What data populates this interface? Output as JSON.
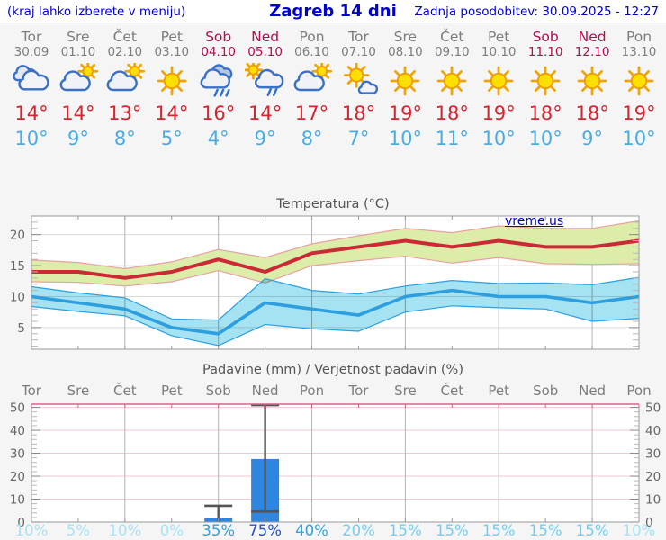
{
  "header": {
    "note": "(kraj lahko izberete v meniju)",
    "title": "Zagreb 14 dni",
    "updated": "Zadnja posodobitev: 30.09.2025 - 12:27"
  },
  "colors": {
    "link_blue": "#0000cd",
    "weekday_gray": "#7d7d7d",
    "weekend_red": "#b50c4f",
    "temp_max_text": "#d6232f",
    "temp_min_text": "#49ade4",
    "chart_red": "#cc2936",
    "chart_red_band": "#dcedaa",
    "chart_red_band_edge": "#e8a0a0",
    "chart_blue": "#2d9ede",
    "chart_blue_band": "#a5e2f2",
    "bar_blue": "#2e86e0",
    "whisker_gray": "#555555",
    "grid_gray": "#b3b3b3",
    "grid_light": "#dadada",
    "grid_pink": "#eec9d4",
    "border_pink": "#e0608a",
    "prob_low": "#a7e2f4",
    "prob_mid": "#74cdee",
    "prob_high": "#2ea3df",
    "prob_max": "#1e4fd6"
  },
  "days": [
    {
      "name": "Tor",
      "date": "30.09",
      "weekend": false,
      "icon": "cloudy",
      "tmax": "14°",
      "tmin": "10°",
      "prob": "10%"
    },
    {
      "name": "Sre",
      "date": "01.10",
      "weekend": false,
      "icon": "partly-sunny",
      "tmax": "14°",
      "tmin": "9°",
      "prob": "5%"
    },
    {
      "name": "Čet",
      "date": "02.10",
      "weekend": false,
      "icon": "partly-sunny",
      "tmax": "13°",
      "tmin": "8°",
      "prob": "10%"
    },
    {
      "name": "Pet",
      "date": "03.10",
      "weekend": false,
      "icon": "sunny",
      "tmax": "14°",
      "tmin": "5°",
      "prob": "0%"
    },
    {
      "name": "Sob",
      "date": "04.10",
      "weekend": true,
      "icon": "rain",
      "tmax": "16°",
      "tmin": "4°",
      "prob": "35%"
    },
    {
      "name": "Ned",
      "date": "05.10",
      "weekend": true,
      "icon": "sun-rain",
      "tmax": "14°",
      "tmin": "9°",
      "prob": "75%"
    },
    {
      "name": "Pon",
      "date": "06.10",
      "weekend": false,
      "icon": "partly-sunny",
      "tmax": "17°",
      "tmin": "8°",
      "prob": "40%"
    },
    {
      "name": "Tor",
      "date": "07.10",
      "weekend": false,
      "icon": "mostly-sunny",
      "tmax": "18°",
      "tmin": "7°",
      "prob": "20%"
    },
    {
      "name": "Sre",
      "date": "08.10",
      "weekend": false,
      "icon": "sunny",
      "tmax": "19°",
      "tmin": "10°",
      "prob": "15%"
    },
    {
      "name": "Čet",
      "date": "09.10",
      "weekend": false,
      "icon": "sunny",
      "tmax": "18°",
      "tmin": "11°",
      "prob": "15%"
    },
    {
      "name": "Pet",
      "date": "10.10",
      "weekend": false,
      "icon": "sunny",
      "tmax": "19°",
      "tmin": "10°",
      "prob": "15%"
    },
    {
      "name": "Sob",
      "date": "11.10",
      "weekend": true,
      "icon": "sunny",
      "tmax": "18°",
      "tmin": "10°",
      "prob": "15%"
    },
    {
      "name": "Ned",
      "date": "12.10",
      "weekend": true,
      "icon": "sunny",
      "tmax": "18°",
      "tmin": "9°",
      "prob": "15%"
    },
    {
      "name": "Pon",
      "date": "13.10",
      "weekend": false,
      "icon": "sunny",
      "tmax": "19°",
      "tmin": "10°",
      "prob": "10%"
    }
  ],
  "chart_data": [
    {
      "type": "line",
      "title": "Temperatura (°C)",
      "watermark": "vreme.us",
      "x_labels": [
        "Tor",
        "Sre",
        "Čet",
        "Pet",
        "Sob",
        "Ned",
        "Pon",
        "Tor",
        "Sre",
        "Čet",
        "Pet",
        "Sob",
        "Ned",
        "Pon"
      ],
      "ylim": [
        1.5,
        23
      ],
      "yticks": [
        5,
        10,
        15,
        20
      ],
      "grid": true,
      "series": [
        {
          "name": "max-temperature",
          "values": [
            14,
            14,
            13,
            14,
            16,
            14,
            17,
            18,
            19,
            18,
            19,
            18,
            18,
            19
          ],
          "band_upper": [
            15.9,
            15.5,
            14.5,
            15.6,
            17.6,
            16.3,
            18.5,
            19.8,
            21.0,
            20.3,
            21.4,
            21.0,
            21.0,
            22.2
          ],
          "band_lower": [
            12.4,
            12.3,
            11.7,
            12.4,
            14.2,
            12.2,
            15.0,
            15.8,
            16.5,
            15.4,
            16.3,
            15.3,
            15.2,
            15.3
          ]
        },
        {
          "name": "min-temperature",
          "values": [
            10,
            9,
            8,
            5,
            4,
            9,
            8,
            7,
            10,
            11,
            10,
            10,
            9,
            10
          ],
          "band_upper": [
            11.6,
            10.6,
            9.8,
            6.4,
            6.2,
            12.9,
            11.0,
            10.4,
            11.7,
            12.6,
            12.1,
            12.2,
            11.9,
            13.1
          ],
          "band_lower": [
            8.4,
            7.6,
            6.9,
            3.7,
            2.1,
            5.5,
            4.8,
            4.4,
            7.5,
            8.5,
            8.2,
            8.0,
            6.0,
            6.5
          ]
        }
      ]
    },
    {
      "type": "bar",
      "title": "Padavine (mm) / Verjetnost padavin (%)",
      "x_labels": [
        "Tor",
        "Sre",
        "Čet",
        "Pet",
        "Sob",
        "Ned",
        "Pon",
        "Tor",
        "Sre",
        "Čet",
        "Pet",
        "Sob",
        "Ned",
        "Pon"
      ],
      "ylim": [
        0,
        51.4
      ],
      "yticks": [
        0,
        10,
        20,
        30,
        40,
        50
      ],
      "values": [
        0,
        0,
        0,
        0,
        1.6,
        27.5,
        0,
        0,
        0,
        0,
        0,
        0,
        0,
        0
      ],
      "whiskers": [
        {
          "day": 4,
          "low": 0,
          "high": 7.1
        },
        {
          "day": 5,
          "low": 4.6,
          "high": 51
        }
      ],
      "probabilities": [
        "10%",
        "5%",
        "10%",
        "0%",
        "35%",
        "75%",
        "40%",
        "20%",
        "15%",
        "15%",
        "15%",
        "15%",
        "15%",
        "10%"
      ]
    }
  ]
}
